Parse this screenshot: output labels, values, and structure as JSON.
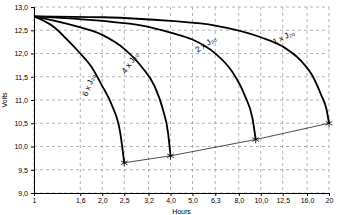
{
  "chart_data": {
    "type": "line",
    "x_label": "Hours",
    "y_label": "Volts",
    "log": "x",
    "grid": true,
    "xlim": [
      1,
      20
    ],
    "ylim": [
      9.0,
      13.0
    ],
    "xticks": [
      1,
      {
        "value": 1.6,
        "label": "1,6"
      },
      {
        "value": 2.0,
        "label": "2,0"
      },
      {
        "value": 2.5,
        "label": "2,5"
      },
      {
        "value": 3.2,
        "label": "3,2"
      },
      {
        "value": 4.0,
        "label": "4,0"
      },
      {
        "value": 5.0,
        "label": "5,0"
      },
      {
        "value": 6.3,
        "label": "6,3"
      },
      {
        "value": 8.0,
        "label": "8,0"
      },
      {
        "value": 10.0,
        "label": "10,0"
      },
      {
        "value": 12.5,
        "label": "12,5"
      },
      {
        "value": 16.0,
        "label": "16,0"
      },
      20
    ],
    "yticks": [
      {
        "value": 9.0,
        "label": "9,0"
      },
      {
        "value": 9.5,
        "label": "9,5"
      },
      {
        "value": 10.0,
        "label": "10,0"
      },
      {
        "value": 10.5,
        "label": "10,5"
      },
      {
        "value": 11.0,
        "label": "11,0"
      },
      {
        "value": 11.5,
        "label": "11,5"
      },
      {
        "value": 12.0,
        "label": "12,0"
      },
      {
        "value": 12.5,
        "label": "12,5"
      },
      {
        "value": 13.0,
        "label": "13,0"
      }
    ],
    "series": [
      {
        "name": "6 x J₂₀",
        "color": "#000000",
        "line_style": "solid",
        "x": [
          1,
          1.2,
          1.4,
          1.6,
          1.8,
          2.0,
          2.2,
          2.4,
          2.5
        ],
        "values": [
          12.8,
          12.6,
          12.3,
          12.0,
          11.7,
          11.3,
          10.9,
          10.3,
          9.65
        ]
      },
      {
        "name": "4 x J₂₀",
        "color": "#000000",
        "line_style": "solid",
        "x": [
          1,
          1.5,
          2.0,
          2.5,
          3.0,
          3.4,
          3.7,
          3.9,
          4.0
        ],
        "values": [
          12.8,
          12.6,
          12.4,
          12.1,
          11.7,
          11.3,
          10.8,
          10.3,
          9.8
        ]
      },
      {
        "name": "2 x J₂₀",
        "color": "#000000",
        "line_style": "solid",
        "x": [
          1,
          2.0,
          3.0,
          4.0,
          5.0,
          6.3,
          7.5,
          8.5,
          9.2,
          9.5
        ],
        "values": [
          12.8,
          12.7,
          12.6,
          12.45,
          12.3,
          12.0,
          11.6,
          11.1,
          10.6,
          10.15
        ]
      },
      {
        "name": "1 x J₂₀",
        "color": "#000000",
        "line_style": "solid",
        "x": [
          1,
          2.0,
          4.0,
          6.3,
          10.0,
          12.5,
          15.0,
          17.0,
          18.5,
          19.5,
          20
        ],
        "values": [
          12.8,
          12.78,
          12.7,
          12.6,
          12.35,
          12.15,
          11.85,
          11.5,
          11.1,
          10.8,
          10.5
        ]
      },
      {
        "color": "#000000",
        "line_style": "solid",
        "marker": "star",
        "x": [
          2.5,
          4.0,
          9.5,
          20
        ],
        "values": [
          9.65,
          9.8,
          10.15,
          10.5
        ]
      }
    ]
  }
}
